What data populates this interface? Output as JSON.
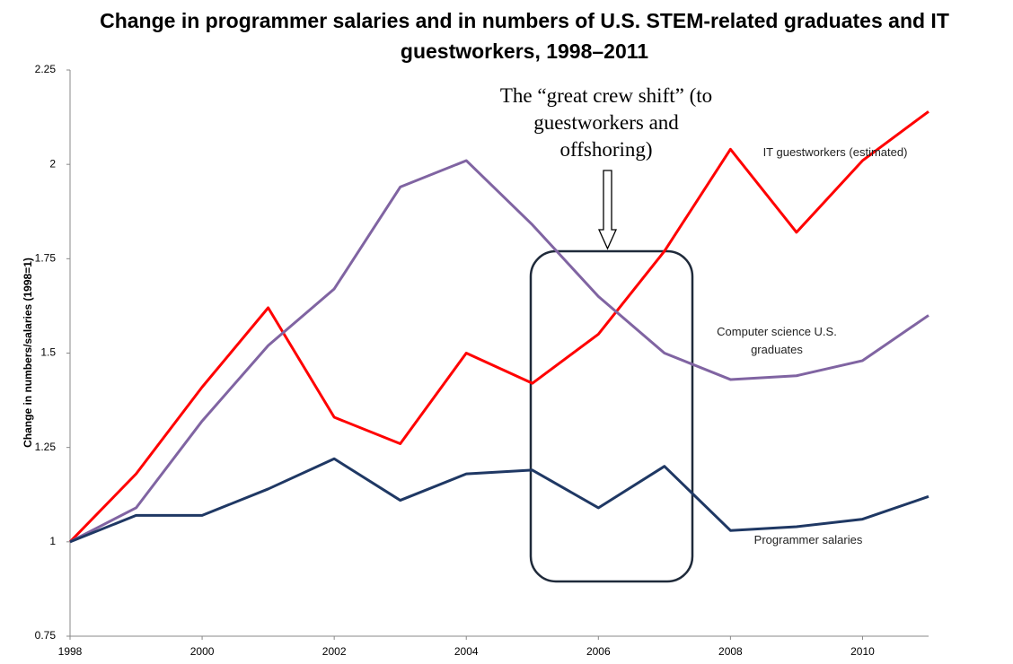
{
  "chart_data": {
    "type": "line",
    "title": "Change in programmer salaries and in numbers of U.S. STEM-related graduates and IT guestworkers, 1998–2011",
    "annotation": "The “great crew shift” (to guestworkers and offshoring)",
    "y_label": "Change in numbers/salaries (1998=1)",
    "x": [
      1998,
      1999,
      2000,
      2001,
      2002,
      2003,
      2004,
      2005,
      2006,
      2007,
      2008,
      2009,
      2010,
      2011
    ],
    "series": [
      {
        "name": "IT guestworkers (estimated)",
        "color": "#ff0000",
        "values": [
          1,
          1.18,
          1.41,
          1.62,
          1.33,
          1.26,
          1.5,
          1.42,
          1.55,
          1.77,
          2.04,
          1.82,
          2.01,
          2.14
        ]
      },
      {
        "name": "Computer science U.S. graduates",
        "color": "#8064a2",
        "values": [
          1,
          1.09,
          1.32,
          1.52,
          1.67,
          1.94,
          2.01,
          1.84,
          1.65,
          1.5,
          1.43,
          1.44,
          1.48,
          1.6
        ]
      },
      {
        "name": "Programmer  salaries",
        "color": "#1f3864",
        "values": [
          1,
          1.07,
          1.07,
          1.14,
          1.22,
          1.11,
          1.18,
          1.19,
          1.09,
          1.2,
          1.03,
          1.04,
          1.06,
          1.12
        ]
      }
    ],
    "xlim": [
      1998,
      2011
    ],
    "xticks": [
      1998,
      2000,
      2002,
      2004,
      2006,
      2008,
      2010
    ],
    "ylim": [
      0.75,
      2.25
    ],
    "yticks": [
      0.75,
      1,
      1.25,
      1.5,
      1.75,
      2,
      2.25
    ]
  }
}
